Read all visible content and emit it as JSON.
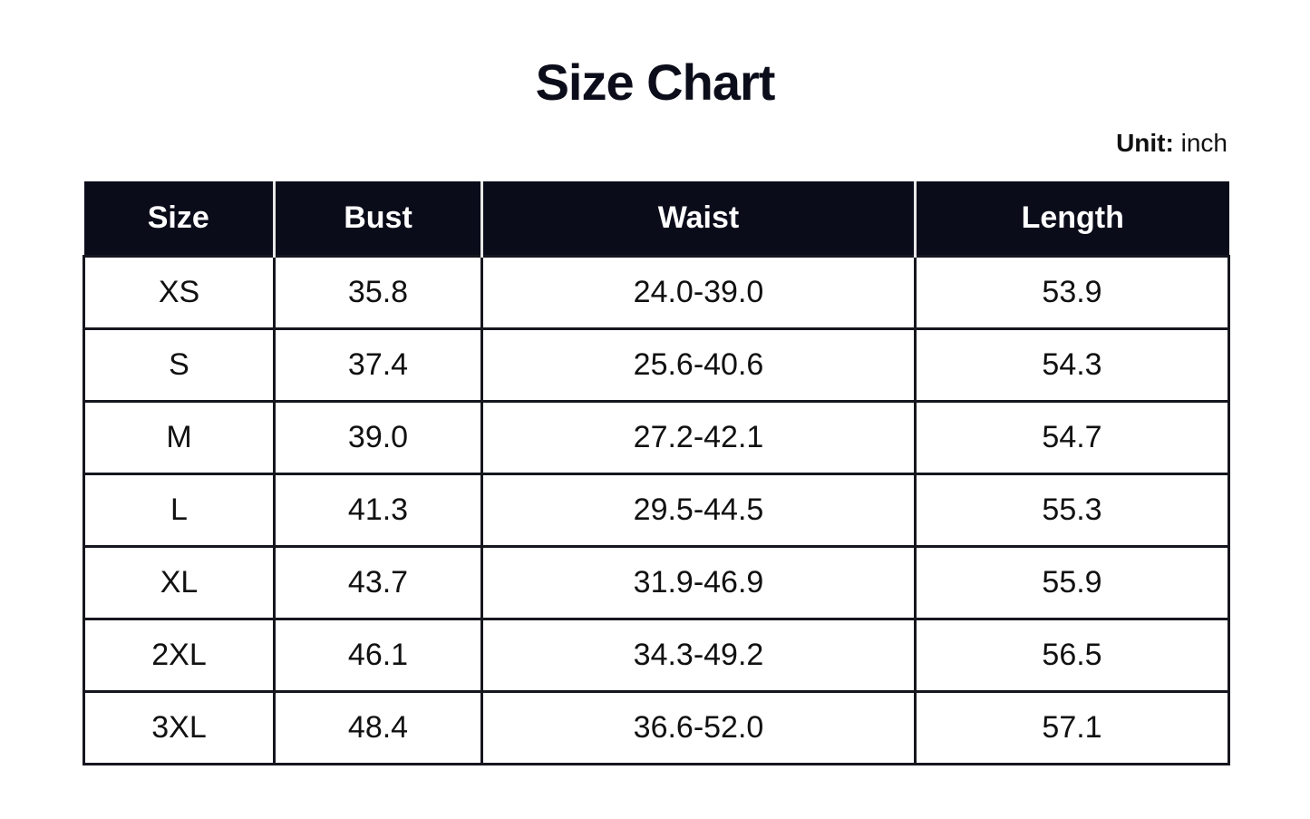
{
  "title": "Size Chart",
  "unit": {
    "label": "Unit:",
    "value": "inch"
  },
  "table": {
    "headers": [
      "Size",
      "Bust",
      "Waist",
      "Length"
    ],
    "rows": [
      [
        "XS",
        "35.8",
        "24.0-39.0",
        "53.9"
      ],
      [
        "S",
        "37.4",
        "25.6-40.6",
        "54.3"
      ],
      [
        "M",
        "39.0",
        "27.2-42.1",
        "54.7"
      ],
      [
        "L",
        "41.3",
        "29.5-44.5",
        "55.3"
      ],
      [
        "XL",
        "43.7",
        "31.9-46.9",
        "55.9"
      ],
      [
        "2XL",
        "46.1",
        "34.3-49.2",
        "56.5"
      ],
      [
        "3XL",
        "48.4",
        "36.6-52.0",
        "57.1"
      ]
    ]
  },
  "colors": {
    "header_bg": "#0b0c1a",
    "header_text": "#ffffff"
  }
}
